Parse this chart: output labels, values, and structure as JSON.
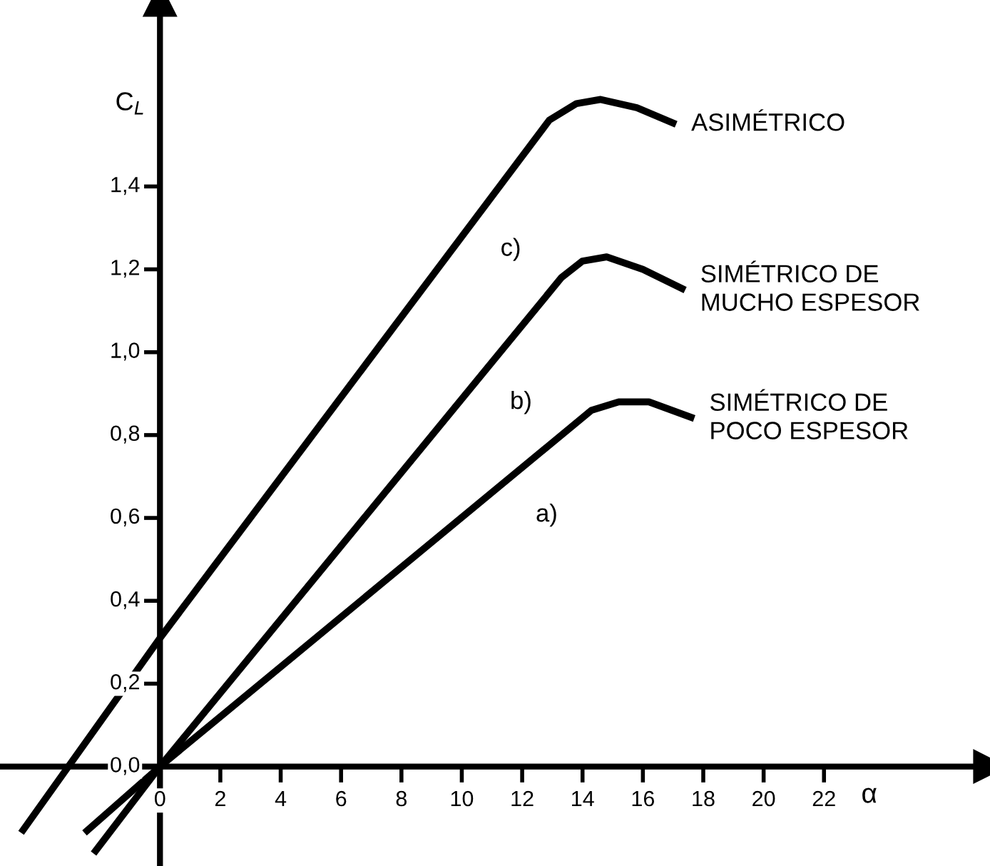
{
  "chart_data": {
    "type": "line",
    "xlabel": "α",
    "ylabel": "C$_{L}$",
    "xlim": [
      -5.3,
      27.5
    ],
    "ylim": [
      -0.24,
      1.85
    ],
    "xticks": [
      0,
      2,
      4,
      6,
      8,
      10,
      12,
      14,
      16,
      18,
      20,
      22
    ],
    "yticks": [
      {
        "value": 0,
        "label": "0,0"
      },
      {
        "value": 0.2,
        "label": "0,2"
      },
      {
        "value": 0.4,
        "label": "0,4"
      },
      {
        "value": 0.6,
        "label": "0,6"
      },
      {
        "value": 0.8,
        "label": "0,8"
      },
      {
        "value": 1.0,
        "label": "1,0"
      },
      {
        "value": 1.2,
        "label": "1,2"
      },
      {
        "value": 1.4,
        "label": "1,4"
      }
    ],
    "grid": false,
    "legend": false,
    "marker": "none",
    "line_style": "solid",
    "series": [
      {
        "name": "ASIMÉTRICO",
        "color": "#000000",
        "x": [
          -4.6,
          0,
          12.9,
          13.8,
          14.6,
          15.8,
          17.1
        ],
        "values": [
          -0.16,
          0.31,
          1.56,
          1.6,
          1.61,
          1.59,
          1.55
        ]
      },
      {
        "name": "SIMÉTRICO DE\nMUCHO ESPESOR",
        "color": "#000000",
        "x": [
          -2.2,
          0,
          13.3,
          14.0,
          14.8,
          16.0,
          17.4
        ],
        "values": [
          -0.21,
          0,
          1.18,
          1.22,
          1.23,
          1.2,
          1.15
        ]
      },
      {
        "name": "SIMÉTRICO DE\nPOCO ESPESOR",
        "color": "#000000",
        "x": [
          -2.5,
          0,
          14.3,
          15.2,
          16.2,
          17.7
        ],
        "values": [
          -0.16,
          0,
          0.86,
          0.88,
          0.88,
          0.84
        ]
      }
    ],
    "annotations": [
      "c)",
      "b)",
      "a)"
    ]
  }
}
